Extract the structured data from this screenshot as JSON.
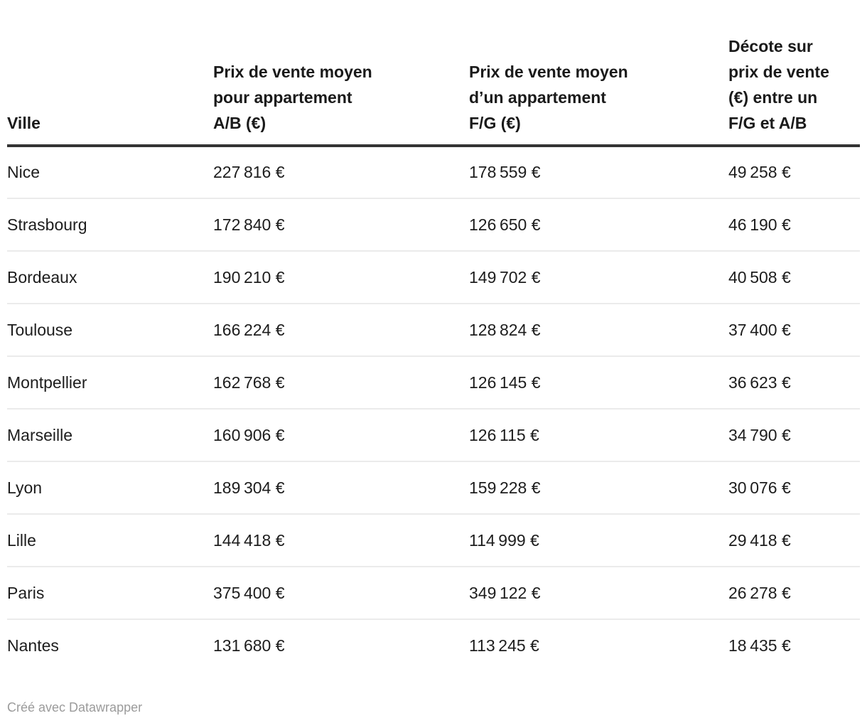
{
  "table": {
    "header": {
      "ville": "Ville",
      "ab": "Prix de vente moyen\npour appartement\nA/B (€)",
      "fg": "Prix de vente moyen\nd’un appartement\nF/G (€)",
      "decote": "Décote sur\nprix de vente\n(€) entre un\nF/G et A/B"
    },
    "rows": [
      {
        "ville": "Nice",
        "ab": "227 816 €",
        "fg": "178 559 €",
        "decote": "49 258 €"
      },
      {
        "ville": "Strasbourg",
        "ab": "172 840 €",
        "fg": "126 650 €",
        "decote": "46 190 €"
      },
      {
        "ville": "Bordeaux",
        "ab": "190 210 €",
        "fg": "149 702 €",
        "decote": "40 508 €"
      },
      {
        "ville": "Toulouse",
        "ab": "166 224 €",
        "fg": "128 824 €",
        "decote": "37 400 €"
      },
      {
        "ville": "Montpellier",
        "ab": "162 768 €",
        "fg": "126 145 €",
        "decote": "36 623 €"
      },
      {
        "ville": "Marseille",
        "ab": "160 906 €",
        "fg": "126 115 €",
        "decote": "34 790 €"
      },
      {
        "ville": "Lyon",
        "ab": "189 304 €",
        "fg": "159 228 €",
        "decote": "30 076 €"
      },
      {
        "ville": "Lille",
        "ab": "144 418 €",
        "fg": "114 999 €",
        "decote": "29 418 €"
      },
      {
        "ville": "Paris",
        "ab": "375 400 €",
        "fg": "349 122 €",
        "decote": "26 278 €"
      },
      {
        "ville": "Nantes",
        "ab": "131 680 €",
        "fg": "113 245 €",
        "decote": "18 435 €"
      }
    ]
  },
  "footer": {
    "credit": "Créé avec Datawrapper"
  },
  "colors": {
    "header_rule": "#333333",
    "row_rule": "#ebebeb",
    "text": "#1d1d1d",
    "credit_text": "#9b9b9b",
    "background": "#ffffff"
  },
  "chart_data": {
    "type": "table",
    "title": "",
    "columns": [
      "Ville",
      "Prix de vente moyen pour appartement A/B (€)",
      "Prix de vente moyen d’un appartement F/G (€)",
      "Décote sur prix de vente (€) entre un F/G et A/B"
    ],
    "rows": [
      [
        "Nice",
        227816,
        178559,
        49258
      ],
      [
        "Strasbourg",
        172840,
        126650,
        46190
      ],
      [
        "Bordeaux",
        190210,
        149702,
        40508
      ],
      [
        "Toulouse",
        166224,
        128824,
        37400
      ],
      [
        "Montpellier",
        162768,
        126145,
        36623
      ],
      [
        "Marseille",
        160906,
        126115,
        34790
      ],
      [
        "Lyon",
        189304,
        159228,
        30076
      ],
      [
        "Lille",
        144418,
        114999,
        29418
      ],
      [
        "Paris",
        375400,
        349122,
        26278
      ],
      [
        "Nantes",
        131680,
        113245,
        18435
      ]
    ],
    "sorted_by": "Décote sur prix de vente (€) entre un F/G et A/B",
    "sort_order": "descending",
    "footer": "Créé avec Datawrapper"
  }
}
